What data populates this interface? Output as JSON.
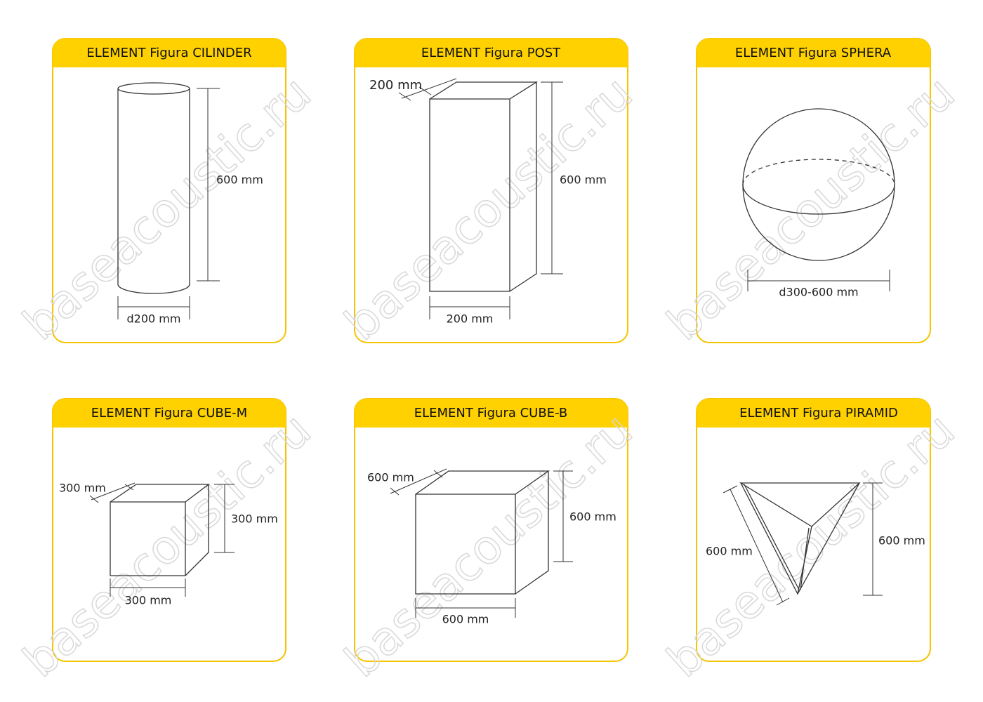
{
  "cards": [
    {
      "title": "ELEMENT Figura CILINDER",
      "dimensions": [
        "600 mm",
        "d200 mm"
      ]
    },
    {
      "title": "ELEMENT Figura POST",
      "dimensions": [
        "200 mm",
        "600 mm",
        "200 mm"
      ]
    },
    {
      "title": "ELEMENT Figura SPHERA",
      "dimensions": [
        "d300-600 mm"
      ]
    },
    {
      "title": "ELEMENT Figura CUBE-M",
      "dimensions": [
        "300 mm",
        "300 mm",
        "300 mm"
      ]
    },
    {
      "title": "ELEMENT Figura CUBE-B",
      "dimensions": [
        "600 mm",
        "600 mm",
        "600 mm"
      ]
    },
    {
      "title": "ELEMENT Figura PIRAMID",
      "dimensions": [
        "600 mm",
        "600 mm"
      ]
    }
  ],
  "watermark": "baseacoustic.ru"
}
